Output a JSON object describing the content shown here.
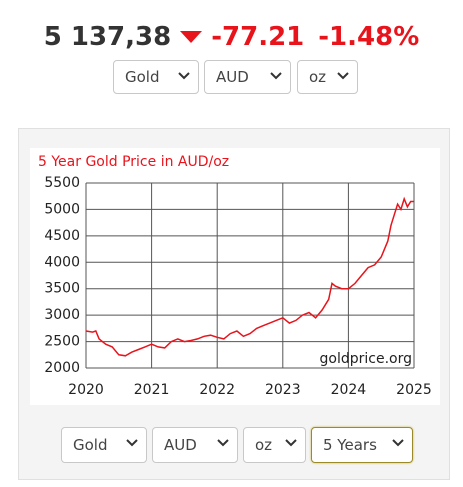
{
  "header": {
    "price": "5 137,38",
    "change": "-77.21",
    "change_pct": "-1.48%"
  },
  "top_selects": [
    "Gold",
    "AUD",
    "oz"
  ],
  "bottom_selects": [
    "Gold",
    "AUD",
    "oz",
    "5 Years"
  ],
  "chart_data": {
    "type": "line",
    "title": "5 Year Gold Price in AUD/oz",
    "watermark": "goldprice.org",
    "color": "#e8141c",
    "grid": true,
    "xlim": [
      2020,
      2025
    ],
    "xticks": [
      2020,
      2021,
      2022,
      2023,
      2024,
      2025
    ],
    "ylim": [
      2000,
      5500
    ],
    "yticks": [
      2000,
      2500,
      3000,
      3500,
      4000,
      4500,
      5000,
      5500
    ],
    "x": [
      2020.0,
      2020.1,
      2020.15,
      2020.2,
      2020.3,
      2020.4,
      2020.5,
      2020.6,
      2020.7,
      2020.8,
      2020.9,
      2021.0,
      2021.1,
      2021.2,
      2021.3,
      2021.4,
      2021.5,
      2021.6,
      2021.7,
      2021.8,
      2021.9,
      2022.0,
      2022.1,
      2022.2,
      2022.3,
      2022.4,
      2022.5,
      2022.6,
      2022.7,
      2022.8,
      2022.9,
      2023.0,
      2023.1,
      2023.2,
      2023.3,
      2023.4,
      2023.5,
      2023.6,
      2023.7,
      2023.75,
      2023.8,
      2023.9,
      2024.0,
      2024.1,
      2024.2,
      2024.3,
      2024.4,
      2024.5,
      2024.6,
      2024.65,
      2024.7,
      2024.75,
      2024.8,
      2024.85,
      2024.9,
      2024.95,
      2025.0
    ],
    "values": [
      2700,
      2680,
      2700,
      2550,
      2450,
      2400,
      2250,
      2230,
      2300,
      2350,
      2400,
      2450,
      2400,
      2380,
      2500,
      2550,
      2500,
      2520,
      2550,
      2600,
      2620,
      2580,
      2550,
      2650,
      2700,
      2600,
      2650,
      2750,
      2800,
      2850,
      2900,
      2950,
      2850,
      2900,
      3000,
      3050,
      2950,
      3100,
      3300,
      3600,
      3550,
      3500,
      3500,
      3600,
      3750,
      3900,
      3950,
      4100,
      4400,
      4700,
      4900,
      5100,
      5000,
      5200,
      5050,
      5150,
      5150
    ]
  }
}
